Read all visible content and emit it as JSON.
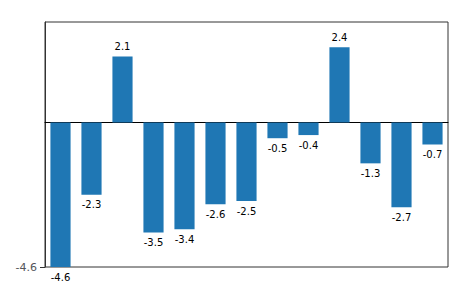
{
  "chart_data": {
    "type": "bar",
    "categories": [
      null,
      null,
      null,
      null,
      null,
      null,
      null,
      null,
      null,
      null,
      null,
      null,
      null
    ],
    "values": [
      -4.6,
      -2.3,
      2.1,
      -3.5,
      -3.4,
      -2.6,
      -2.5,
      -0.5,
      -0.4,
      2.4,
      -1.3,
      -2.7,
      -0.7
    ],
    "color": "#1f77b4",
    "ylim": [
      -4.6,
      3.2
    ],
    "yticks": [
      -4.6
    ],
    "grid": false,
    "data_labels": true,
    "tick_labels": "y"
  }
}
